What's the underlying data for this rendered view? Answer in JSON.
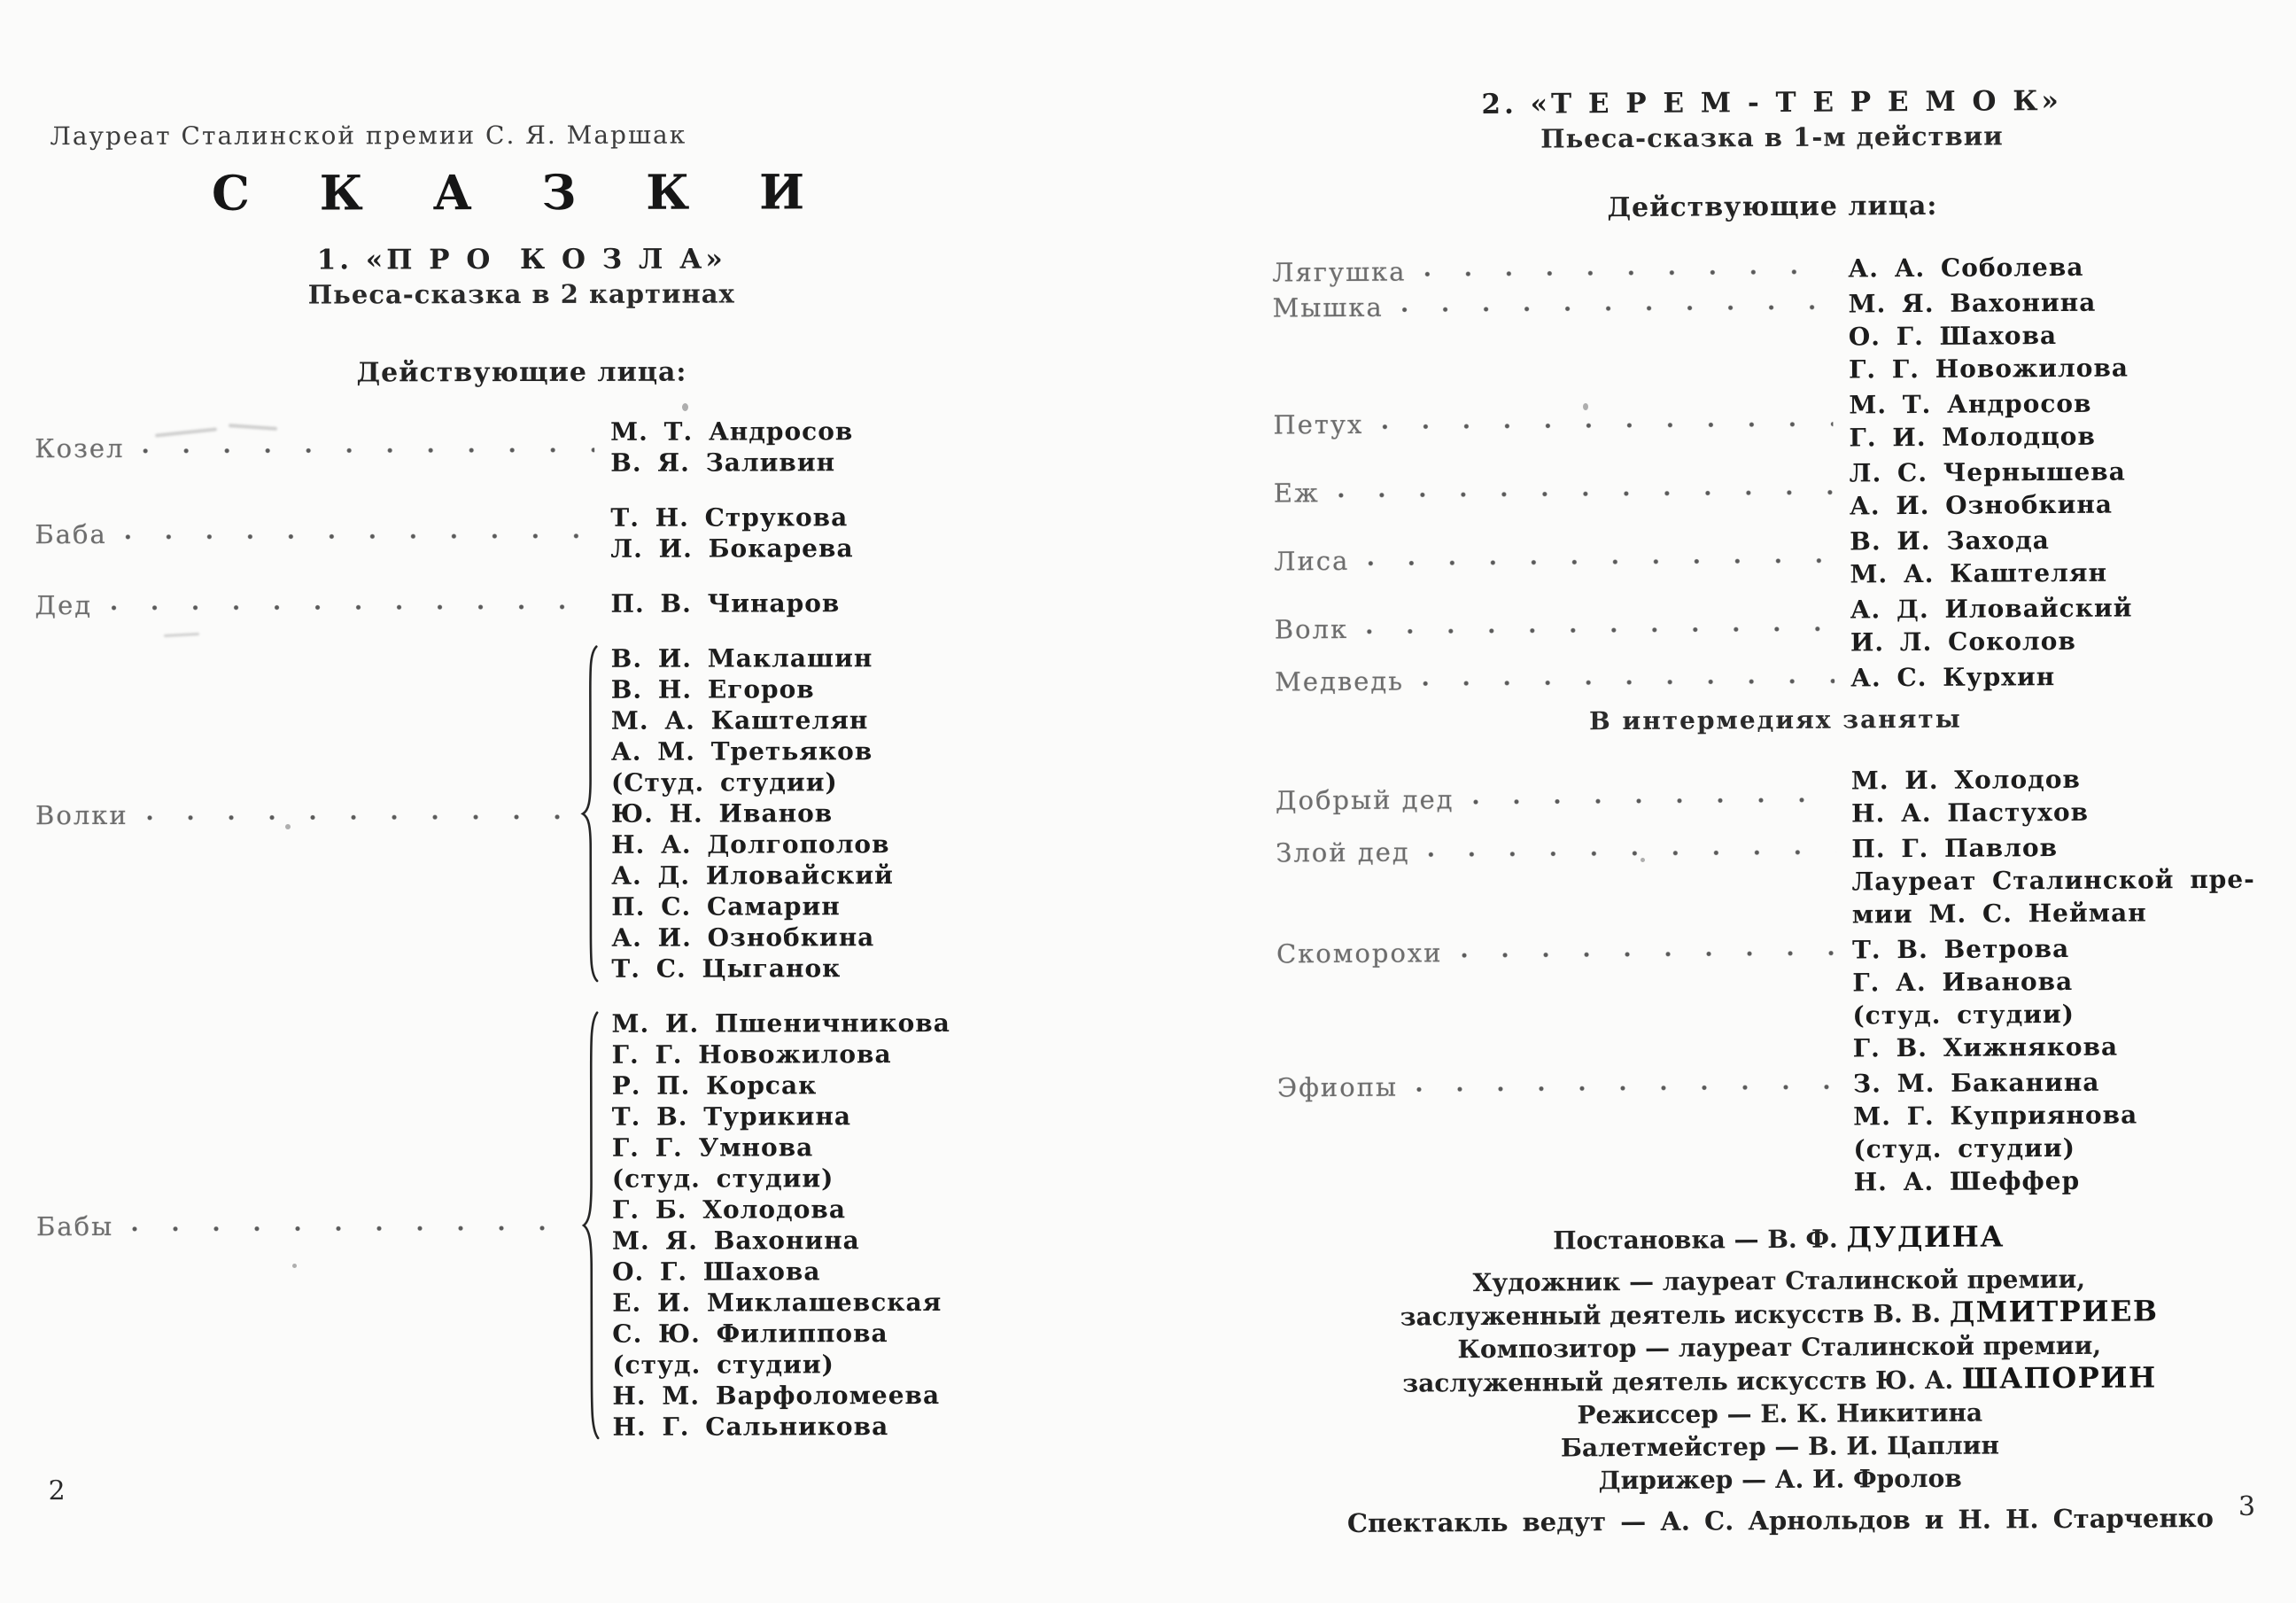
{
  "page_left": {
    "page_number": "2",
    "byline": "Лауреат Сталинской премии С. Я. Маршак",
    "title": "С К А З К И",
    "play_number_title": "1. «П Р О  К О З Л А»",
    "subtitle": "Пьеса-сказка в 2 картинах",
    "cast_heading": "Действующие лица:",
    "cast": [
      {
        "role": "Козел",
        "align": "center",
        "names": [
          "М. Т. Андросов",
          "В. Я. Заливин"
        ]
      },
      {
        "role": "Баба",
        "align": "center",
        "names": [
          "Т. Н. Струкова",
          "Л. И. Бокарева"
        ]
      },
      {
        "role": "Дед",
        "align": "center",
        "names": [
          "П. В. Чинаров"
        ]
      },
      {
        "role": "Волки",
        "align": "center",
        "brace": true,
        "names": [
          "В. И. Маклашин",
          "В. Н. Егоров",
          "М. А. Каштелян",
          "А. М. Третьяков",
          "(Студ. студии)",
          "Ю. Н. Иванов",
          "Н. А. Долгополов",
          "А. Д. Иловайский",
          "П. С. Самарин",
          "А. И. Ознобкина",
          "Т. С. Цыганок"
        ]
      },
      {
        "role": "Бабы",
        "align": "center",
        "brace": true,
        "names": [
          "М. И. Пшеничникова",
          "Г. Г. Новожилова",
          "Р. П. Корсак",
          "Т. В. Турикина",
          "Г. Г. Умнова",
          "(студ. студии)",
          "Г. Б. Холодова",
          "М. Я. Вахонина",
          "О. Г. Шахова",
          "Е. И. Миклашевская",
          "С. Ю. Филиппова",
          "(студ. студии)",
          "Н. М. Варфоломеева",
          "Н. Г. Сальникова"
        ]
      }
    ]
  },
  "page_right": {
    "page_number": "3",
    "play_number_title": "2. «Т Е Р Е М - Т Е Р Е М О К»",
    "subtitle": "Пьеса-сказка в 1-м действии",
    "cast_heading": "Действующие лица:",
    "cast": [
      {
        "role": "Лягушка",
        "align": "center",
        "names": [
          "А. А. Соболева"
        ]
      },
      {
        "role": "Мышка",
        "align": "top",
        "names": [
          "М. Я. Вахонина",
          "О. Г. Шахова",
          "Г. Г. Новожилова"
        ]
      },
      {
        "role": "Петух",
        "align": "center",
        "names": [
          "М. Т. Андросов",
          "Г. И. Молодцов"
        ]
      },
      {
        "role": "Еж",
        "align": "center",
        "names": [
          "Л. С. Чернышева",
          "А. И. Ознобкина"
        ]
      },
      {
        "role": "Лиса",
        "align": "center",
        "names": [
          "В. И. Захода",
          "М. А. Каштелян"
        ]
      },
      {
        "role": "Волк",
        "align": "center",
        "names": [
          "А. Д. Иловайский",
          "И. Л. Соколов"
        ]
      },
      {
        "role": "Медведь",
        "align": "center",
        "names": [
          "А. С. Курхин"
        ]
      }
    ],
    "intermission_heading": "В интермедиях заняты",
    "intermission_cast": [
      {
        "role": "Добрый дед",
        "align": "center",
        "names": [
          "М. И. Холодов",
          "Н. А. Пастухов"
        ]
      },
      {
        "role": "Злой дед",
        "align": "top",
        "names": [
          "П. Г. Павлов",
          "Лауреат Сталинской пре-",
          "мии М. С. Нейман"
        ]
      },
      {
        "role": "Скоморохи",
        "align": "top",
        "names": [
          "Т. В. Ветрова",
          "Г. А. Иванова",
          "(студ. студии)",
          "Г. В. Хижнякова"
        ]
      },
      {
        "role": "Эфиопы",
        "align": "top",
        "names": [
          "З. М. Баканина",
          "М. Г. Куприянова",
          "(студ. студии)",
          "Н. А. Шеффер"
        ]
      }
    ],
    "credits": [
      {
        "text": "Постановка — В. Ф. ",
        "strong": "ДУДИНА"
      },
      {
        "text": "Художник — лауреат Сталинской премии,",
        "strong": ""
      },
      {
        "text": "заслуженный деятель искусств В. В. ",
        "strong": "ДМИТРИЕВ"
      },
      {
        "text": "Композитор — лауреат Сталинской премии,",
        "strong": ""
      },
      {
        "text": "заслуженный деятель искусств Ю. А. ",
        "strong": "ШАПОРИН"
      },
      {
        "text": "Режиссер — Е. К. Никитина",
        "strong": ""
      },
      {
        "text": "Балетмейстер — В. И. Цаплин",
        "strong": ""
      },
      {
        "text": "Дирижер — А. И. Фролов",
        "strong": ""
      },
      {
        "text": "Спектакль ведут — А. С. Арнольдов и Н. Н. Старченко",
        "strong": ""
      }
    ]
  }
}
